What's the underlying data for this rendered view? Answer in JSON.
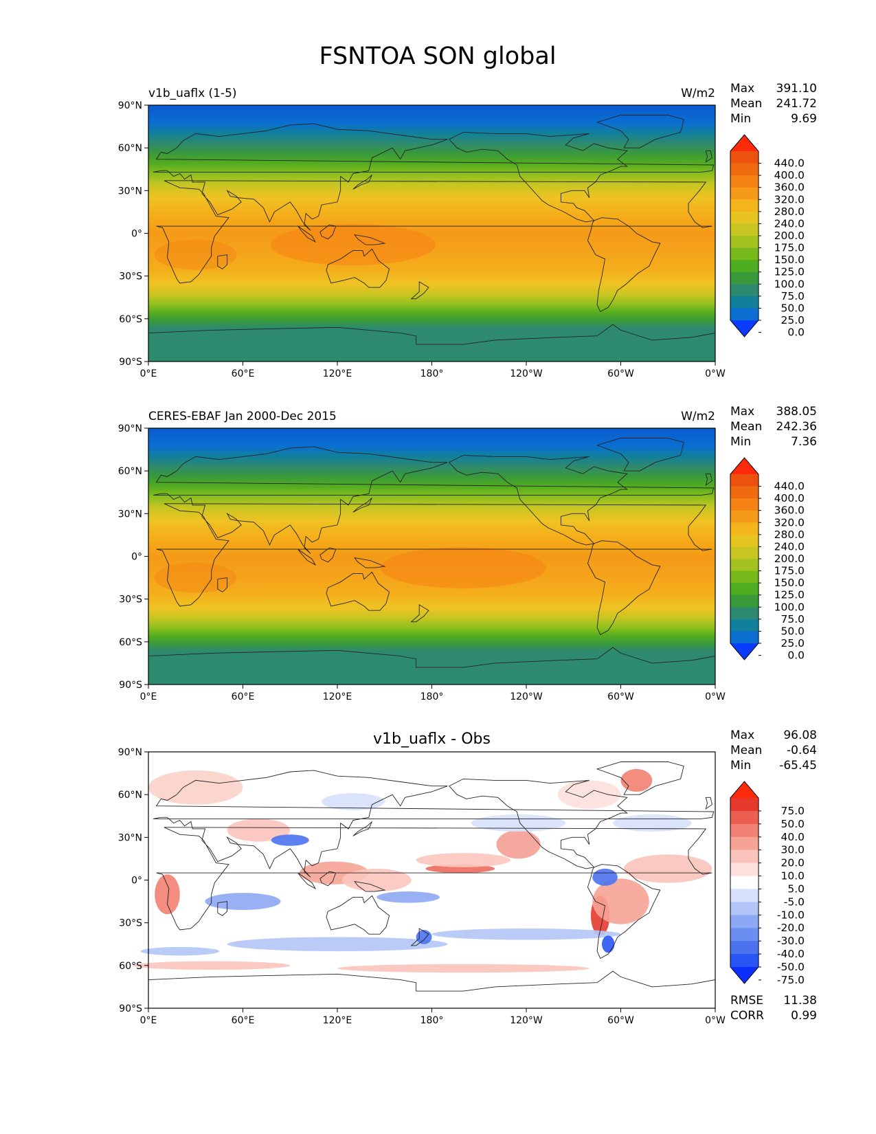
{
  "page_title": "FSNTOA SON global",
  "panels": [
    {
      "title_left": "v1b_uaflx (1-5)",
      "title_center": "",
      "units": "W/m2",
      "stats": [
        {
          "label": "Max",
          "value": "391.10"
        },
        {
          "label": "Mean",
          "value": "241.72"
        },
        {
          "label": "Min",
          "value": "9.69"
        }
      ],
      "colorbar": {
        "ticks": [
          "440.0",
          "400.0",
          "360.0",
          "320.0",
          "280.0",
          "240.0",
          "200.0",
          "175.0",
          "150.0",
          "125.0",
          "100.0",
          "75.0",
          "50.0",
          "25.0",
          "0.0"
        ],
        "colors": [
          "#0a3cff",
          "#0a6fd1",
          "#11809a",
          "#2e8a6e",
          "#3a9a3a",
          "#4fae20",
          "#78b91c",
          "#a3c21f",
          "#c8c522",
          "#e8c422",
          "#f4b41c",
          "#f59a18",
          "#f58214",
          "#f06a10",
          "#ec520d",
          "#ff2a0a"
        ]
      },
      "extra_stats": []
    },
    {
      "title_left": "CERES-EBAF Jan 2000-Dec 2015",
      "title_center": "",
      "units": "W/m2",
      "stats": [
        {
          "label": "Max",
          "value": "388.05"
        },
        {
          "label": "Mean",
          "value": "242.36"
        },
        {
          "label": "Min",
          "value": "7.36"
        }
      ],
      "colorbar": {
        "ticks": [
          "440.0",
          "400.0",
          "360.0",
          "320.0",
          "280.0",
          "240.0",
          "200.0",
          "175.0",
          "150.0",
          "125.0",
          "100.0",
          "75.0",
          "50.0",
          "25.0",
          "0.0"
        ],
        "colors": [
          "#0a3cff",
          "#0a6fd1",
          "#11809a",
          "#2e8a6e",
          "#3a9a3a",
          "#4fae20",
          "#78b91c",
          "#a3c21f",
          "#c8c522",
          "#e8c422",
          "#f4b41c",
          "#f59a18",
          "#f58214",
          "#f06a10",
          "#ec520d",
          "#ff2a0a"
        ]
      },
      "extra_stats": []
    },
    {
      "title_left": "",
      "title_center": "v1b_uaflx - Obs",
      "units": "",
      "stats": [
        {
          "label": "Max",
          "value": "96.08"
        },
        {
          "label": "Mean",
          "value": "-0.64"
        },
        {
          "label": "Min",
          "value": "-65.45"
        }
      ],
      "colorbar": {
        "ticks": [
          "75.0",
          "50.0",
          "40.0",
          "30.0",
          "20.0",
          "10.0",
          "5.0",
          "-5.0",
          "-10.0",
          "-20.0",
          "-30.0",
          "-40.0",
          "-50.0",
          "-75.0"
        ],
        "colors": [
          "#0a2fff",
          "#2a55f5",
          "#4b73ee",
          "#6b8ff0",
          "#8ea9f3",
          "#b3c5f7",
          "#d8e1fb",
          "#ffffff",
          "#fde0dc",
          "#fac3bb",
          "#f6a396",
          "#f18172",
          "#ec5e50",
          "#e6382d",
          "#ff2a0a"
        ]
      },
      "extra_stats": [
        {
          "label": "RMSE",
          "value": "11.38"
        },
        {
          "label": "CORR",
          "value": "0.99"
        }
      ]
    }
  ],
  "axes": {
    "x_ticks": [
      "0°E",
      "60°E",
      "120°E",
      "180°",
      "120°W",
      "60°W",
      "0°W"
    ],
    "y_ticks": [
      "90°N",
      "60°N",
      "30°N",
      "0°",
      "30°S",
      "60°S",
      "90°S"
    ]
  },
  "chart_data": [
    {
      "type": "heatmap",
      "title": "v1b_uaflx (1-5)",
      "units": "W/m2",
      "x": [
        0,
        60,
        120,
        180,
        240,
        300,
        360
      ],
      "y": [
        90,
        60,
        30,
        0,
        -30,
        -60,
        -90
      ],
      "xlim": [
        0,
        360
      ],
      "ylim": [
        -90,
        90
      ],
      "levels": [
        0,
        25,
        50,
        75,
        100,
        125,
        150,
        175,
        200,
        240,
        280,
        320,
        360,
        400,
        440
      ],
      "zonal_profile": {
        "lat": [
          90,
          80,
          70,
          60,
          50,
          40,
          30,
          20,
          10,
          0,
          -10,
          -20,
          -30,
          -40,
          -50,
          -60,
          -70,
          -80,
          -90
        ],
        "value": [
          10,
          40,
          75,
          120,
          175,
          230,
          280,
          310,
          315,
          310,
          320,
          320,
          300,
          250,
          200,
          130,
          80,
          70,
          70
        ]
      },
      "stats": {
        "max": 391.1,
        "mean": 241.72,
        "min": 9.69
      }
    },
    {
      "type": "heatmap",
      "title": "CERES-EBAF Jan 2000-Dec 2015",
      "units": "W/m2",
      "x": [
        0,
        60,
        120,
        180,
        240,
        300,
        360
      ],
      "y": [
        90,
        60,
        30,
        0,
        -30,
        -60,
        -90
      ],
      "xlim": [
        0,
        360
      ],
      "ylim": [
        -90,
        90
      ],
      "levels": [
        0,
        25,
        50,
        75,
        100,
        125,
        150,
        175,
        200,
        240,
        280,
        320,
        360,
        400,
        440
      ],
      "zonal_profile": {
        "lat": [
          90,
          80,
          70,
          60,
          50,
          40,
          30,
          20,
          10,
          0,
          -10,
          -20,
          -30,
          -40,
          -50,
          -60,
          -70,
          -80,
          -90
        ],
        "value": [
          8,
          40,
          75,
          120,
          170,
          225,
          280,
          305,
          310,
          320,
          330,
          325,
          300,
          250,
          200,
          130,
          80,
          70,
          70
        ]
      },
      "stats": {
        "max": 388.05,
        "mean": 242.36,
        "min": 7.36
      }
    },
    {
      "type": "heatmap",
      "title": "v1b_uaflx - Obs",
      "x": [
        0,
        60,
        120,
        180,
        240,
        300,
        360
      ],
      "y": [
        90,
        60,
        30,
        0,
        -30,
        -60,
        -90
      ],
      "xlim": [
        0,
        360
      ],
      "ylim": [
        -90,
        90
      ],
      "levels": [
        -75,
        -50,
        -40,
        -30,
        -20,
        -10,
        -5,
        5,
        10,
        20,
        30,
        40,
        50,
        75
      ],
      "stats": {
        "max": 96.08,
        "mean": -0.64,
        "min": -65.45,
        "rmse": 11.38,
        "corr": 0.99
      }
    }
  ]
}
